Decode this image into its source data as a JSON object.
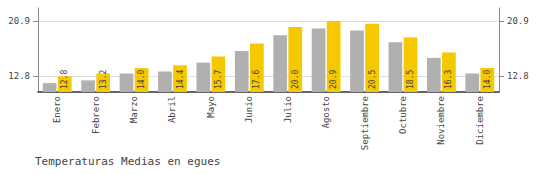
{
  "chart_data": {
    "type": "bar",
    "title": "Temperaturas Medias en egues",
    "categories": [
      "Enero",
      "Febrero",
      "Marzo",
      "Abril",
      "Mayo",
      "Junio",
      "Julio",
      "Agosto",
      "Septiembre",
      "Octubre",
      "Noviembre",
      "Diciembre"
    ],
    "series": [
      {
        "color": "#B0B0B0",
        "values": [
          11.8,
          12.2,
          13.2,
          13.5,
          14.8,
          16.5,
          18.8,
          19.8,
          19.5,
          17.8,
          15.5,
          13.2
        ]
      },
      {
        "color": "#F5C800",
        "values": [
          12.8,
          13.2,
          14.0,
          14.4,
          15.7,
          17.6,
          20.0,
          20.9,
          20.5,
          18.5,
          16.3,
          14.0
        ],
        "value_labels": [
          "12.8",
          "13.2",
          "14.0",
          "14.4",
          "15.7",
          "17.6",
          "20.0",
          "20.9",
          "20.5",
          "18.5",
          "16.3",
          "14.0"
        ],
        "data_labels": true
      }
    ],
    "ylim": [
      10.5,
      22.8
    ],
    "yticks": [
      12.8,
      20.9
    ],
    "y2lim": [
      10.5,
      22.8
    ],
    "y2ticks": [
      12.8,
      20.9
    ],
    "grid": true
  }
}
